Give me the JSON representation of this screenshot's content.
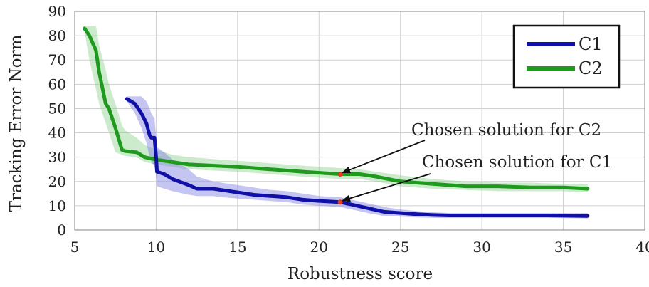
{
  "chart_data": {
    "type": "line",
    "title": "",
    "xlabel": "Robustness score",
    "ylabel": "Tracking Error Norm",
    "xlim": [
      5,
      40
    ],
    "ylim": [
      0,
      90
    ],
    "xticks": [
      5,
      10,
      15,
      20,
      25,
      30,
      35,
      40
    ],
    "yticks": [
      0,
      10,
      20,
      30,
      40,
      50,
      60,
      70,
      80,
      90
    ],
    "grid": true,
    "legend": {
      "position": "top-right",
      "entries": [
        "C1",
        "C2"
      ]
    },
    "series": [
      {
        "name": "C1",
        "color": "#1010a8",
        "band_color": "#7f7fe0",
        "x": [
          8.2,
          8.7,
          9.1,
          9.4,
          9.6,
          9.7,
          9.9,
          10.0,
          10.05,
          10.5,
          11.0,
          12.0,
          12.5,
          13.5,
          14.0,
          15.0,
          16.0,
          17.0,
          18.0,
          19.0,
          20.0,
          21.3,
          22.0,
          23.0,
          24.0,
          25.0,
          26.0,
          27.0,
          28.0,
          30.0,
          32.0,
          34.0,
          36.5
        ],
        "y": [
          54,
          52,
          48,
          44,
          39,
          38,
          38,
          30,
          24,
          23,
          21,
          18.5,
          17,
          17,
          16.5,
          15.5,
          14.5,
          14,
          13.5,
          12.5,
          12,
          11.5,
          10.5,
          9,
          7.5,
          7,
          6.5,
          6.2,
          6,
          6,
          6,
          6,
          5.8
        ],
        "upper": [
          55,
          55,
          55,
          53,
          50,
          48,
          46,
          38,
          34,
          32,
          29,
          25,
          22,
          20,
          19.5,
          18.5,
          17.5,
          16.5,
          16,
          15,
          14,
          13.5,
          12.5,
          11,
          9.5,
          8.5,
          7.8,
          7.3,
          7,
          7,
          7,
          7,
          7
        ],
        "lower": [
          53,
          48,
          42,
          36,
          30,
          28,
          26,
          22,
          18,
          17,
          16,
          14.5,
          14,
          14,
          13.5,
          13,
          12.5,
          12,
          11.5,
          10.5,
          10,
          9.5,
          8.5,
          7,
          5.8,
          5.5,
          5.2,
          5,
          5,
          5,
          5,
          5,
          4.8
        ]
      },
      {
        "name": "C2",
        "color": "#1f9a1f",
        "band_color": "#8fd08f",
        "x": [
          5.6,
          5.9,
          6.3,
          6.5,
          6.9,
          7.1,
          7.5,
          7.9,
          8.1,
          8.8,
          9.3,
          10.0,
          11.0,
          12.0,
          15.0,
          17.0,
          19.0,
          21.3,
          22.5,
          23.5,
          25.0,
          27.0,
          29.0,
          31.0,
          33.0,
          35.0,
          36.5
        ],
        "y": [
          83,
          80,
          74,
          65,
          52,
          50,
          42,
          33,
          32.5,
          32,
          30,
          29,
          28,
          27,
          26,
          25,
          24,
          23,
          23,
          22,
          20,
          19,
          18,
          18,
          17.5,
          17.5,
          17
        ],
        "upper": [
          84,
          84,
          84,
          76,
          66,
          60,
          52,
          43,
          41,
          38,
          35,
          33,
          31,
          30,
          28.5,
          27.5,
          26.5,
          25.5,
          25,
          24,
          22.5,
          21,
          20,
          19.5,
          19.5,
          19,
          19
        ],
        "lower": [
          82,
          70,
          58,
          52,
          44,
          40,
          32,
          31,
          30.5,
          30,
          28,
          27,
          26,
          25,
          24,
          23,
          22,
          21,
          21,
          20,
          18,
          17,
          16.5,
          16,
          16,
          16,
          15.5
        ]
      }
    ],
    "chosen_points": [
      {
        "series": "C2",
        "x": 21.3,
        "y": 23
      },
      {
        "series": "C1",
        "x": 21.3,
        "y": 11.5
      }
    ],
    "marker_color": "#e03a1e",
    "annotations": [
      {
        "text": "Chosen solution for C2",
        "target_series": "C2"
      },
      {
        "text": "Chosen solution for C1",
        "target_series": "C1"
      }
    ]
  }
}
